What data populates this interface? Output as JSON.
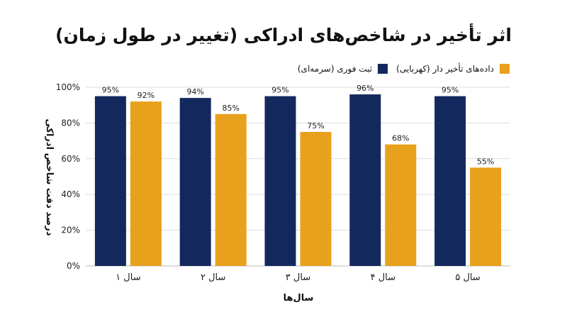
{
  "chart_data": {
    "type": "bar",
    "title": "اثر تأخیر در شاخص‌های ادراکی (تغییر در طول زمان)",
    "xlabel": "سال‌ها",
    "ylabel": "درصد دقت شاخص ادراکی",
    "categories": [
      "سال ۱",
      "سال ۲",
      "سال ۳",
      "سال ۴",
      "سال ۵"
    ],
    "ylim": [
      0,
      100
    ],
    "yticks": [
      0,
      20,
      40,
      60,
      80,
      100
    ],
    "ytick_labels": [
      "0%",
      "20%",
      "40%",
      "60%",
      "80%",
      "100%"
    ],
    "grid": true,
    "legend_position": "top-right",
    "series": [
      {
        "name": "ثبت فوری (سرمه‌ای)",
        "color": "#13295e",
        "values": [
          95,
          94,
          95,
          96,
          95
        ],
        "labels": [
          "95%",
          "94%",
          "95%",
          "96%",
          "95%"
        ]
      },
      {
        "name": "داده‌های تأخیر دار (کهربایی)",
        "color": "#e8a11c",
        "values": [
          92,
          85,
          75,
          68,
          55
        ],
        "labels": [
          "92%",
          "85%",
          "75%",
          "68%",
          "55%"
        ]
      }
    ]
  }
}
